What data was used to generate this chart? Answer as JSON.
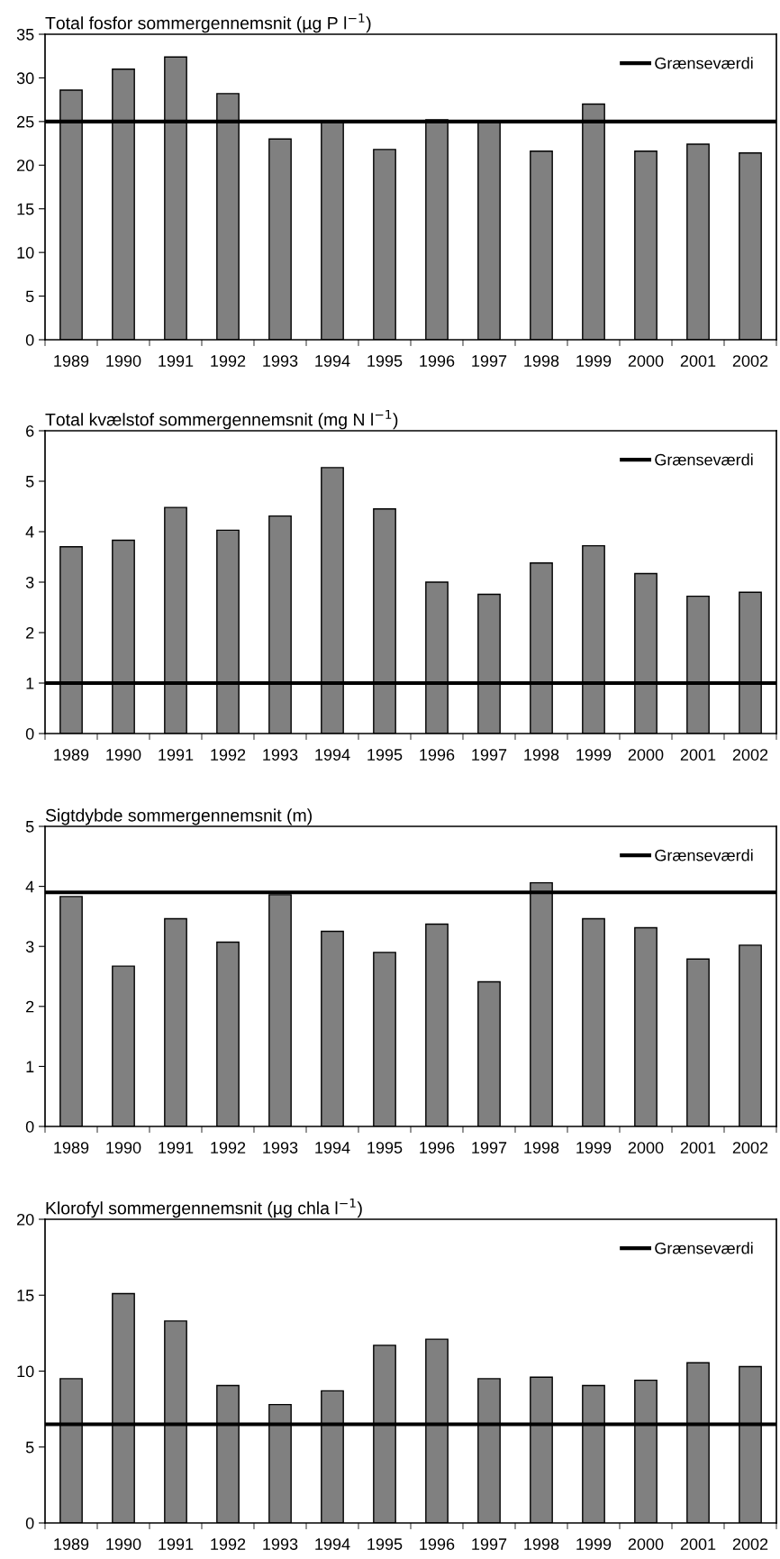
{
  "chart_data": [
    {
      "type": "bar",
      "title": "Total fosfor sommergennemsnit (µg P l$^{−1}$)",
      "categories": [
        "1989",
        "1990",
        "1991",
        "1992",
        "1993",
        "1994",
        "1995",
        "1996",
        "1997",
        "1998",
        "1999",
        "2000",
        "2001",
        "2002"
      ],
      "values": [
        28.6,
        31.0,
        32.4,
        28.2,
        23.0,
        25.0,
        21.8,
        25.2,
        25.0,
        21.6,
        27.0,
        21.6,
        22.4,
        21.4
      ],
      "color": "#808080",
      "ylim": [
        0,
        35
      ],
      "yticks": [
        0,
        5,
        10,
        15,
        20,
        25,
        30,
        35
      ],
      "ref_lines": [
        {
          "axis": "y",
          "value": 25,
          "label": "Grænseværdi",
          "color": "#000000"
        }
      ],
      "legend": "top right",
      "grid": false
    },
    {
      "type": "bar",
      "title": "Total kvælstof sommergennemsnit (mg N l$^{−1}$)",
      "categories": [
        "1989",
        "1990",
        "1991",
        "1992",
        "1993",
        "1994",
        "1995",
        "1996",
        "1997",
        "1998",
        "1999",
        "2000",
        "2001",
        "2002"
      ],
      "values": [
        3.7,
        3.83,
        4.48,
        4.03,
        4.31,
        5.27,
        4.45,
        3.0,
        2.76,
        3.38,
        3.72,
        3.17,
        2.72,
        2.8
      ],
      "color": "#808080",
      "ylim": [
        0,
        6
      ],
      "yticks": [
        0,
        1,
        2,
        3,
        4,
        5,
        6
      ],
      "ref_lines": [
        {
          "axis": "y",
          "value": 1,
          "label": "Grænseværdi",
          "color": "#000000"
        }
      ],
      "legend": "top right",
      "grid": false
    },
    {
      "type": "bar",
      "title": "Sigtdybde sommergennemsnit (m)",
      "categories": [
        "1989",
        "1990",
        "1991",
        "1992",
        "1993",
        "1994",
        "1995",
        "1996",
        "1997",
        "1998",
        "1999",
        "2000",
        "2001",
        "2002"
      ],
      "values": [
        3.83,
        2.67,
        3.46,
        3.07,
        3.86,
        3.25,
        2.9,
        3.37,
        2.41,
        4.06,
        3.46,
        3.31,
        2.79,
        3.02
      ],
      "color": "#808080",
      "ylim": [
        0,
        5
      ],
      "yticks": [
        0,
        1,
        2,
        3,
        4,
        5
      ],
      "ref_lines": [
        {
          "axis": "y",
          "value": 3.9,
          "label": "Grænseværdi",
          "color": "#000000"
        }
      ],
      "legend": "top right",
      "grid": false
    },
    {
      "type": "bar",
      "title": "Klorofyl sommergennemsnit (µg chla l$^{−1}$)",
      "categories": [
        "1989",
        "1990",
        "1991",
        "1992",
        "1993",
        "1994",
        "1995",
        "1996",
        "1997",
        "1998",
        "1999",
        "2000",
        "2001",
        "2002"
      ],
      "values": [
        9.5,
        15.1,
        13.3,
        9.05,
        7.8,
        8.7,
        11.7,
        12.1,
        9.5,
        9.6,
        9.05,
        9.4,
        10.55,
        10.3
      ],
      "color": "#808080",
      "ylim": [
        0,
        20
      ],
      "yticks": [
        0,
        5,
        10,
        15,
        20
      ],
      "ref_lines": [
        {
          "axis": "y",
          "value": 6.5,
          "label": "Grænseværdi",
          "color": "#000000"
        }
      ],
      "legend": "top right",
      "grid": false
    }
  ]
}
